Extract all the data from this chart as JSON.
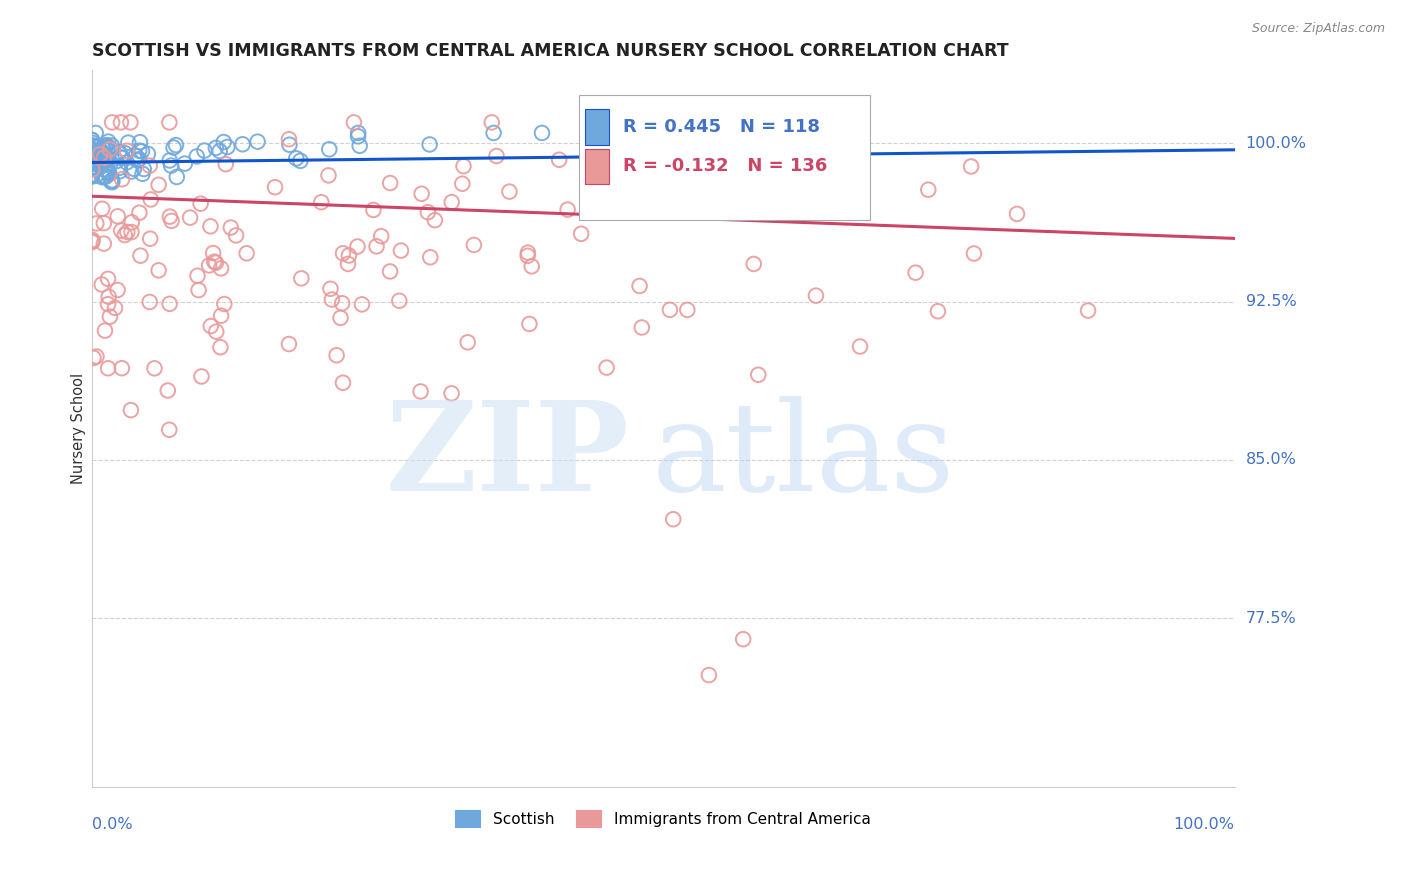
{
  "title": "SCOTTISH VS IMMIGRANTS FROM CENTRAL AMERICA NURSERY SCHOOL CORRELATION CHART",
  "source": "Source: ZipAtlas.com",
  "ylabel": "Nursery School",
  "ytick_labels": [
    "100.0%",
    "92.5%",
    "85.0%",
    "77.5%"
  ],
  "ytick_values": [
    1.0,
    0.925,
    0.85,
    0.775
  ],
  "xlim": [
    0.0,
    1.0
  ],
  "ylim": [
    0.695,
    1.035
  ],
  "blue_R": 0.445,
  "blue_N": 118,
  "pink_R": -0.132,
  "pink_N": 136,
  "blue_color": "#6fa8dc",
  "pink_color": "#ea9999",
  "blue_line_color": "#1155cc",
  "pink_line_color": "#cc4466",
  "title_color": "#222222",
  "axis_label_color": "#4472c4",
  "grid_color": "#cccccc",
  "legend_label_blue": "Scottish",
  "legend_label_pink": "Immigrants from Central America"
}
